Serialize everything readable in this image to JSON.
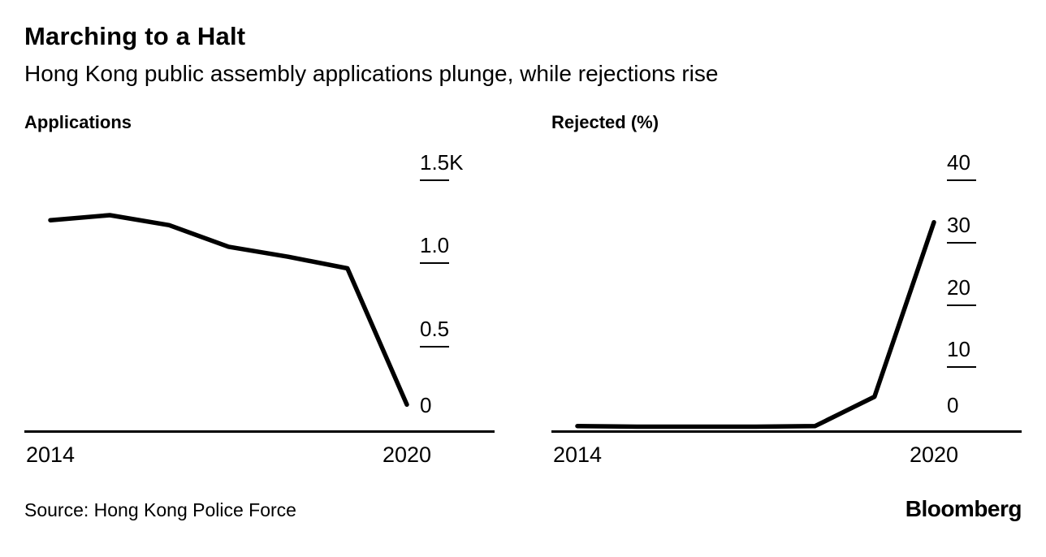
{
  "header": {
    "title": "Marching to a Halt",
    "subtitle": "Hong Kong public assembly applications plunge, while rejections rise"
  },
  "footer": {
    "source": "Source: Hong Kong Police Force",
    "brand": "Bloomberg"
  },
  "colors": {
    "line": "#000000",
    "text": "#000000",
    "background": "#ffffff"
  },
  "chart_data": [
    {
      "type": "line",
      "title": "Applications",
      "xlabel": "",
      "ylabel": "",
      "x": [
        2014,
        2015,
        2016,
        2017,
        2018,
        2019,
        2020
      ],
      "values": [
        1250,
        1280,
        1220,
        1090,
        1030,
        960,
        140
      ],
      "ylim": [
        0,
        1500
      ],
      "yticks": [
        {
          "label": "1.5K",
          "value": 1500
        },
        {
          "label": "1.0",
          "value": 1000
        },
        {
          "label": "0.5",
          "value": 500
        },
        {
          "label": "0",
          "value": 0
        }
      ],
      "xticks": [
        {
          "label": "2014",
          "value": 2014
        },
        {
          "label": "2020",
          "value": 2020
        }
      ],
      "grid": false,
      "legend": "none",
      "ytick_side": "right"
    },
    {
      "type": "line",
      "title": "Rejected (%)",
      "xlabel": "",
      "ylabel": "",
      "x": [
        2014,
        2015,
        2016,
        2017,
        2018,
        2019,
        2020
      ],
      "values": [
        0.3,
        0.2,
        0.2,
        0.2,
        0.3,
        5,
        33
      ],
      "ylim": [
        0,
        40
      ],
      "yticks": [
        {
          "label": "40",
          "value": 40
        },
        {
          "label": "30",
          "value": 30
        },
        {
          "label": "20",
          "value": 20
        },
        {
          "label": "10",
          "value": 10
        },
        {
          "label": "0",
          "value": 0
        }
      ],
      "xticks": [
        {
          "label": "2014",
          "value": 2014
        },
        {
          "label": "2020",
          "value": 2020
        }
      ],
      "grid": false,
      "legend": "none",
      "ytick_side": "right"
    }
  ]
}
